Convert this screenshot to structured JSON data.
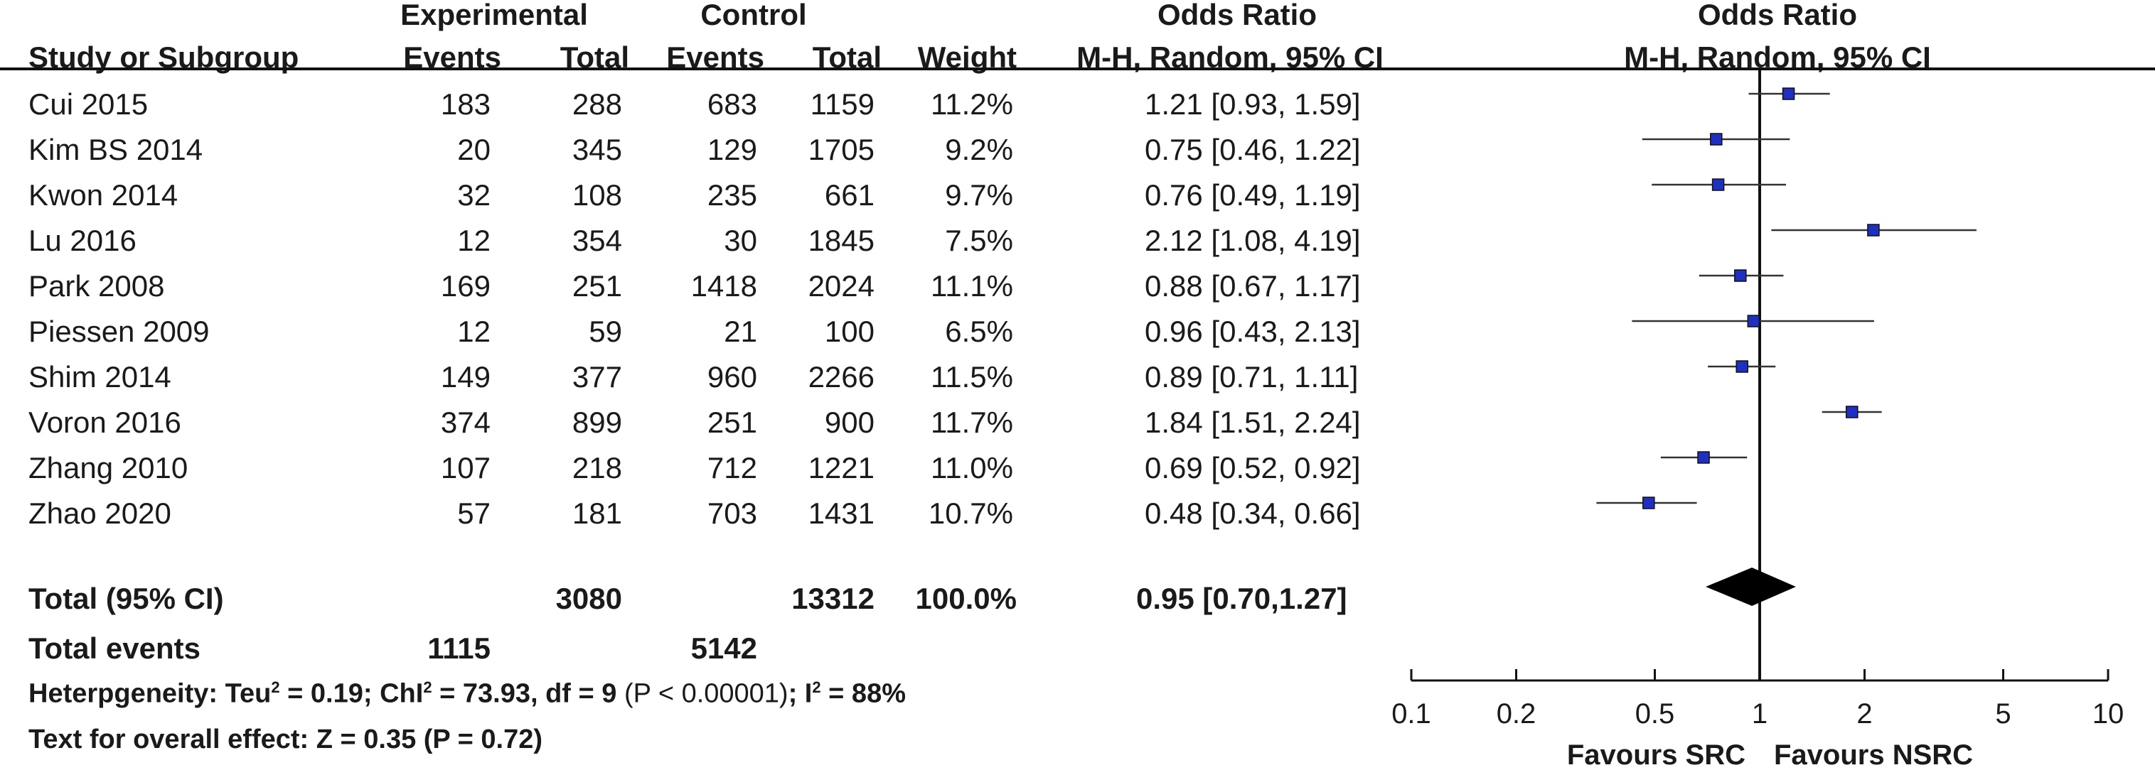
{
  "header": {
    "group_experimental": "Experimental",
    "group_control": "Control",
    "group_or_text": "Odds Ratio",
    "group_or_plot": "Odds Ratio",
    "col_study": "Study or Subgroup",
    "col_exp_events": "Events",
    "col_exp_total": "Total",
    "col_ctl_events": "Events",
    "col_ctl_total": "Total",
    "col_weight": "Weight",
    "col_or_text": "M-H, Random, 95% CI",
    "col_or_plot": "M-H, Random, 95% CI"
  },
  "studies": [
    {
      "name": "Cui 2015",
      "exp_events": "183",
      "exp_total": "288",
      "ctl_events": "683",
      "ctl_total": "1159",
      "weight": "11.2%",
      "or_text": "1.21 [0.93, 1.59]"
    },
    {
      "name": "Kim BS 2014",
      "exp_events": "20",
      "exp_total": "345",
      "ctl_events": "129",
      "ctl_total": "1705",
      "weight": "9.2%",
      "or_text": "0.75 [0.46, 1.22]"
    },
    {
      "name": "Kwon 2014",
      "exp_events": "32",
      "exp_total": "108",
      "ctl_events": "235",
      "ctl_total": "661",
      "weight": "9.7%",
      "or_text": "0.76 [0.49, 1.19]"
    },
    {
      "name": "Lu 2016",
      "exp_events": "12",
      "exp_total": "354",
      "ctl_events": "30",
      "ctl_total": "1845",
      "weight": "7.5%",
      "or_text": "2.12 [1.08, 4.19]"
    },
    {
      "name": "Park 2008",
      "exp_events": "169",
      "exp_total": "251",
      "ctl_events": "1418",
      "ctl_total": "2024",
      "weight": "11.1%",
      "or_text": "0.88 [0.67, 1.17]"
    },
    {
      "name": "Piessen 2009",
      "exp_events": "12",
      "exp_total": "59",
      "ctl_events": "21",
      "ctl_total": "100",
      "weight": "6.5%",
      "or_text": "0.96 [0.43, 2.13]"
    },
    {
      "name": "Shim 2014",
      "exp_events": "149",
      "exp_total": "377",
      "ctl_events": "960",
      "ctl_total": "2266",
      "weight": "11.5%",
      "or_text": "0.89 [0.71, 1.11]"
    },
    {
      "name": "Voron 2016",
      "exp_events": "374",
      "exp_total": "899",
      "ctl_events": "251",
      "ctl_total": "900",
      "weight": "11.7%",
      "or_text": "1.84 [1.51, 2.24]"
    },
    {
      "name": "Zhang 2010",
      "exp_events": "107",
      "exp_total": "218",
      "ctl_events": "712",
      "ctl_total": "1221",
      "weight": "11.0%",
      "or_text": "0.69 [0.52, 0.92]"
    },
    {
      "name": "Zhao 2020",
      "exp_events": "57",
      "exp_total": "181",
      "ctl_events": "703",
      "ctl_total": "1431",
      "weight": "10.7%",
      "or_text": "0.48 [0.34, 0.66]"
    }
  ],
  "total": {
    "label": "Total (95% CI)",
    "exp_total": "3080",
    "ctl_total": "13312",
    "weight": "100.0%",
    "or_text": "0.95 [0.70,1.27]"
  },
  "total_events": {
    "label": "Total events",
    "exp_events": "1115",
    "ctl_events": "5142"
  },
  "heterogeneity": {
    "prefix": "Heterpgeneity: Teu",
    "sup1": "2",
    "mid1": " = 0.19; ChI",
    "sup2": "2",
    "mid2": " = 73.93, df = 9 ",
    "p_part": "(P < 0.00001)",
    "mid3": "; I",
    "sup3": "2",
    "suffix": " = 88%"
  },
  "overall_effect": "Text for overall effect: Z = 0.35 (P =  0.72)",
  "chart_data": {
    "type": "scatter",
    "scale": "log",
    "xlim": [
      0.1,
      10
    ],
    "reference_line": 1,
    "tick_values": [
      0.1,
      0.2,
      0.5,
      1,
      2,
      5,
      10
    ],
    "tick_labels": [
      "0.1",
      "0.2",
      "0.5",
      "1",
      "2",
      "5",
      "10"
    ],
    "xlabel_left": "Favours SRC",
    "xlabel_right": "Favours NSRC",
    "marker_color": "#1f2fbf",
    "series": [
      {
        "study": "Cui 2015",
        "or": 1.21,
        "lo": 0.93,
        "hi": 1.59
      },
      {
        "study": "Kim BS 2014",
        "or": 0.75,
        "lo": 0.46,
        "hi": 1.22
      },
      {
        "study": "Kwon 2014",
        "or": 0.76,
        "lo": 0.49,
        "hi": 1.19
      },
      {
        "study": "Lu 2016",
        "or": 2.12,
        "lo": 1.08,
        "hi": 4.19
      },
      {
        "study": "Park 2008",
        "or": 0.88,
        "lo": 0.67,
        "hi": 1.17
      },
      {
        "study": "Piessen 2009",
        "or": 0.96,
        "lo": 0.43,
        "hi": 2.13
      },
      {
        "study": "Shim 2014",
        "or": 0.89,
        "lo": 0.71,
        "hi": 1.11
      },
      {
        "study": "Voron 2016",
        "or": 1.84,
        "lo": 1.51,
        "hi": 2.24
      },
      {
        "study": "Zhang 2010",
        "or": 0.69,
        "lo": 0.52,
        "hi": 0.92
      },
      {
        "study": "Zhao 2020",
        "or": 0.48,
        "lo": 0.34,
        "hi": 0.66
      }
    ],
    "pooled": {
      "or": 0.95,
      "lo": 0.7,
      "hi": 1.27
    }
  }
}
